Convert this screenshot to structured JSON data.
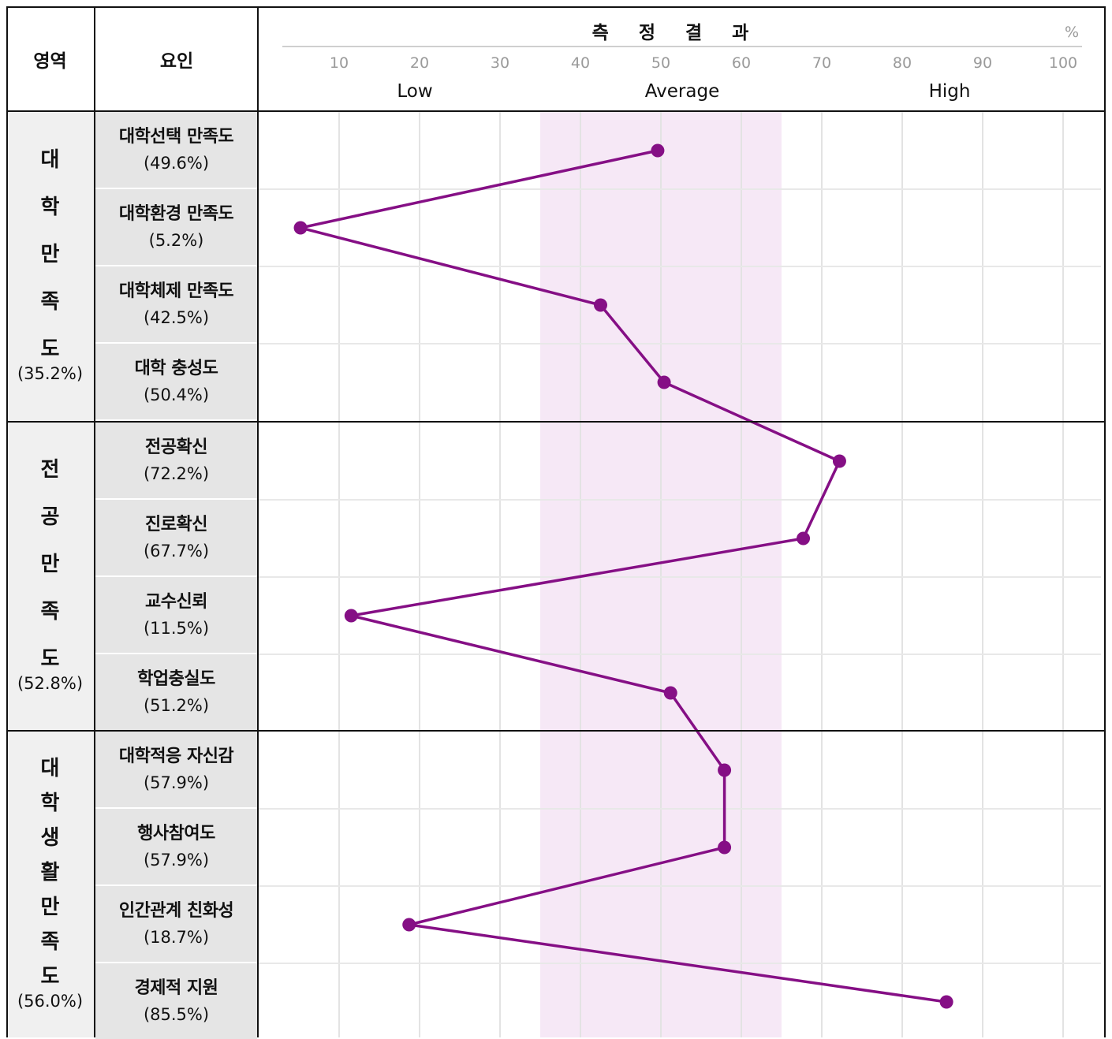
{
  "header": {
    "domain_col": "영역",
    "factor_col": "요인",
    "result_title": "측 정 결 과",
    "percent_unit": "%",
    "bands": [
      "Low",
      "Average",
      "High"
    ]
  },
  "domains": [
    {
      "chars": [
        "대",
        "학",
        "만",
        "족",
        "도"
      ],
      "percent": "(35.2%)",
      "factors": [
        {
          "name": "대학선택 만족도",
          "percent": "(49.6%)"
        },
        {
          "name": "대학환경 만족도",
          "percent": "(5.2%)"
        },
        {
          "name": "대학체제 만족도",
          "percent": "(42.5%)"
        },
        {
          "name": "대학 충성도",
          "percent": "(50.4%)"
        }
      ]
    },
    {
      "chars": [
        "전",
        "공",
        "만",
        "족",
        "도"
      ],
      "percent": "(52.8%)",
      "factors": [
        {
          "name": "전공확신",
          "percent": "(72.2%)"
        },
        {
          "name": "진로확신",
          "percent": "(67.7%)"
        },
        {
          "name": "교수신뢰",
          "percent": "(11.5%)"
        },
        {
          "name": "학업충실도",
          "percent": "(51.2%)"
        }
      ]
    },
    {
      "chars": [
        "대",
        "학",
        "생",
        "활",
        "만",
        "족",
        "도"
      ],
      "percent": "(56.0%)",
      "factors": [
        {
          "name": "대학적응 자신감",
          "percent": "(57.9%)"
        },
        {
          "name": "행사참여도",
          "percent": "(57.9%)"
        },
        {
          "name": "인간관계 친화성",
          "percent": "(18.7%)"
        },
        {
          "name": "경제적 지원",
          "percent": "(85.5%)"
        }
      ]
    }
  ],
  "chart_data": {
    "type": "line",
    "orientation": "horizontal-profile",
    "title": "측 정 결 과",
    "x_unit": "%",
    "xlim": [
      0,
      100
    ],
    "x_ticks": [
      10,
      20,
      30,
      40,
      50,
      60,
      70,
      80,
      90,
      100
    ],
    "average_band": [
      35,
      65
    ],
    "bands": [
      "Low",
      "Average",
      "High"
    ],
    "categories": [
      "대학선택 만족도",
      "대학환경 만족도",
      "대학체제 만족도",
      "대학 충성도",
      "전공확신",
      "진로확신",
      "교수신뢰",
      "학업충실도",
      "대학적응 자신감",
      "행사참여도",
      "인간관계 친화성",
      "경제적 지원"
    ],
    "series": [
      {
        "values": [
          49.6,
          5.2,
          42.5,
          50.4,
          72.2,
          67.7,
          11.5,
          51.2,
          57.9,
          57.9,
          18.7,
          85.5
        ]
      }
    ],
    "colors": {
      "line": "#850f85",
      "average_band": "#f6e8f6"
    }
  }
}
